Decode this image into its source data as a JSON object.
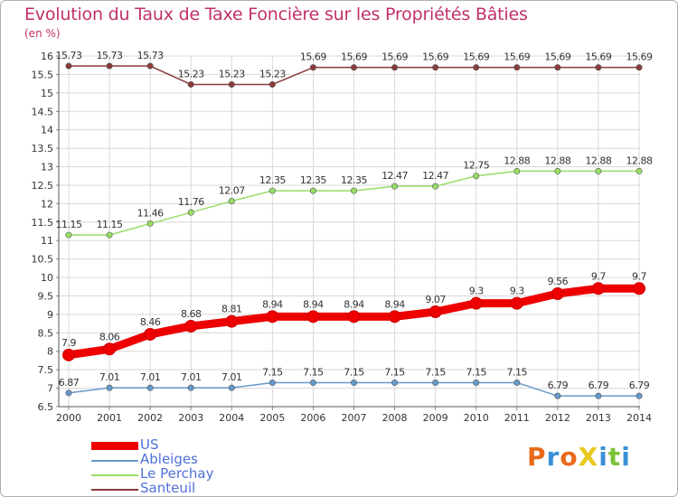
{
  "title": "Evolution du Taux de Taxe Foncière sur les Propriétés Bâties",
  "subtitle": "(en %)",
  "colors": {
    "title": "#c0306a",
    "legend_text": "#5070d8",
    "grid": "#d8d8d8",
    "US": "#ee0000",
    "Ableiges": "#6699cc",
    "Le Perchay": "#99dd66",
    "Santeuil": "#8b3a3a"
  },
  "logo": {
    "text": "ProXiti",
    "icon": "proxiti-logo"
  },
  "chart_data": {
    "type": "line",
    "title": "Evolution du Taux de Taxe Foncière sur les Propriétés Bâties",
    "ylabel": "(en %)",
    "xlabel": "",
    "x": [
      "2000",
      "2001",
      "2002",
      "2003",
      "2004",
      "2005",
      "2006",
      "2007",
      "2008",
      "2009",
      "2010",
      "2011",
      "2012",
      "2013",
      "2014"
    ],
    "ylim": [
      6.5,
      16
    ],
    "yticks": [
      "6.5",
      "7",
      "7.5",
      "8",
      "8.5",
      "9",
      "9.5",
      "10",
      "10.5",
      "11",
      "11.5",
      "12",
      "12.5",
      "13",
      "13.5",
      "14",
      "14.5",
      "15",
      "15.5",
      "16"
    ],
    "grid": true,
    "legend_position": "bottom-left",
    "series": [
      {
        "name": "US",
        "color": "#ee0000",
        "values": [
          7.9,
          8.06,
          8.46,
          8.68,
          8.81,
          8.94,
          8.94,
          8.94,
          8.94,
          9.07,
          9.3,
          9.3,
          9.56,
          9.7,
          9.7
        ],
        "labels": [
          "7.9",
          "8.06",
          "8.46",
          "8.68",
          "8.81",
          "8.94",
          "8.94",
          "8.94",
          "8.94",
          "9.07",
          "9.3",
          "9.3",
          "9.56",
          "9.7",
          "9.7"
        ]
      },
      {
        "name": "Ableiges",
        "color": "#6699cc",
        "values": [
          6.87,
          7.01,
          7.01,
          7.01,
          7.01,
          7.15,
          7.15,
          7.15,
          7.15,
          7.15,
          7.15,
          7.15,
          6.79,
          6.79,
          6.79
        ],
        "labels": [
          "6.87",
          "7.01",
          "7.01",
          "7.01",
          "7.01",
          "7.15",
          "7.15",
          "7.15",
          "7.15",
          "7.15",
          "7.15",
          "7.15",
          "6.79",
          "6.79",
          "6.79"
        ]
      },
      {
        "name": "Le Perchay",
        "color": "#99dd66",
        "values": [
          11.15,
          11.15,
          11.46,
          11.76,
          12.07,
          12.35,
          12.35,
          12.35,
          12.47,
          12.47,
          12.75,
          12.88,
          12.88,
          12.88,
          12.88
        ],
        "labels": [
          "11.15",
          "11.15",
          "11.46",
          "11.76",
          "12.07",
          "12.35",
          "12.35",
          "12.35",
          "12.47",
          "12.47",
          "12.75",
          "12.88",
          "12.88",
          "12.88",
          "12.88"
        ]
      },
      {
        "name": "Santeuil",
        "color": "#8b3a3a",
        "values": [
          15.73,
          15.73,
          15.73,
          15.23,
          15.23,
          15.23,
          15.69,
          15.69,
          15.69,
          15.69,
          15.69,
          15.69,
          15.69,
          15.69,
          15.69
        ],
        "labels": [
          "15.73",
          "15.73",
          "15.73",
          "15.23",
          "15.23",
          "15.23",
          "15.69",
          "15.69",
          "15.69",
          "15.69",
          "15.69",
          "15.69",
          "15.69",
          "15.69",
          "15.69"
        ]
      }
    ]
  }
}
